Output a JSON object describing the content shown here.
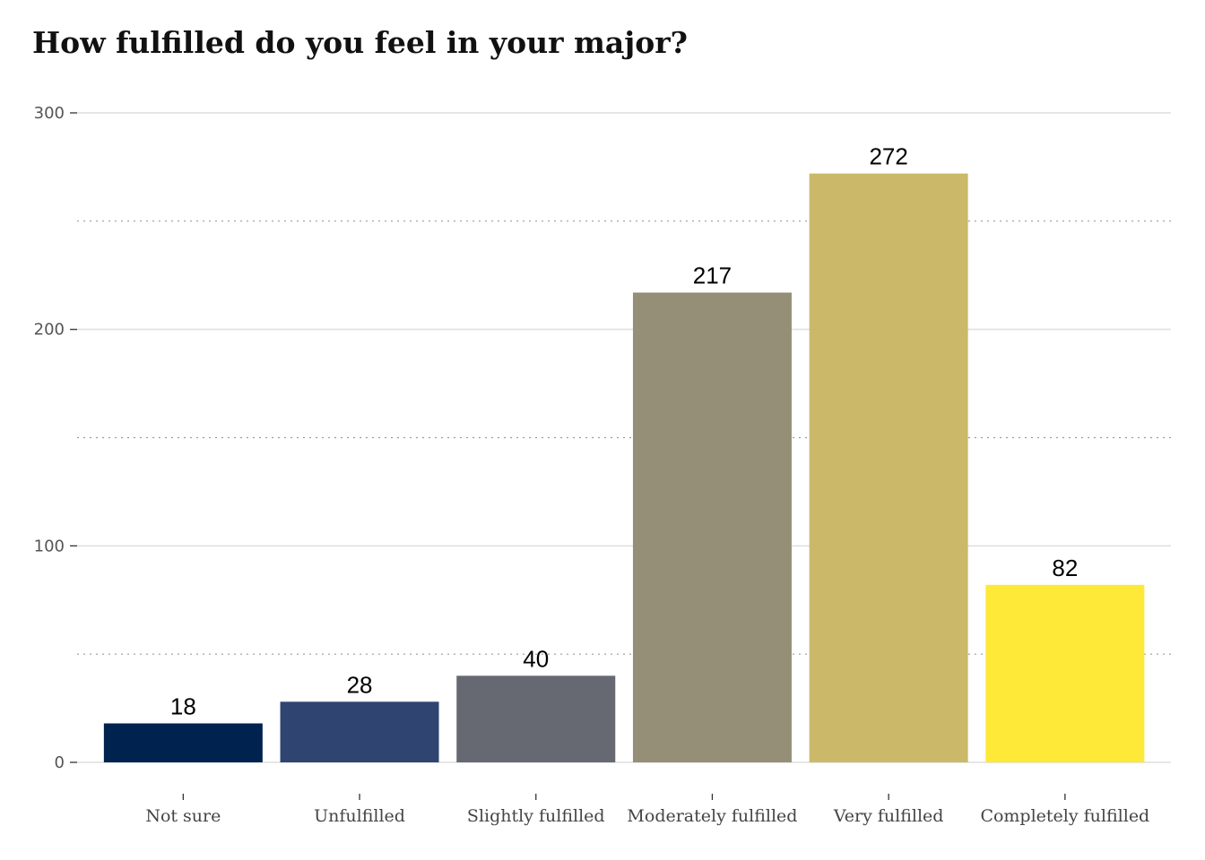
{
  "chart_data": {
    "type": "bar",
    "title": "How fulfilled do you feel in your major?",
    "xlabel": "",
    "ylabel": "",
    "categories": [
      "Not sure",
      "Unfulfilled",
      "Slightly fulfilled",
      "Moderately fulfilled",
      "Very fulfilled",
      "Completely fulfilled"
    ],
    "values": [
      18,
      28,
      40,
      217,
      272,
      82
    ],
    "colors": [
      "#00224e",
      "#2f4470",
      "#666972",
      "#958f78",
      "#cbb969",
      "#fee838"
    ],
    "ylim": [
      0,
      300
    ],
    "yticks": [
      0,
      100,
      200,
      300
    ],
    "minor_gridlines": [
      50,
      150,
      250
    ],
    "grid": true,
    "data_labels": true
  }
}
